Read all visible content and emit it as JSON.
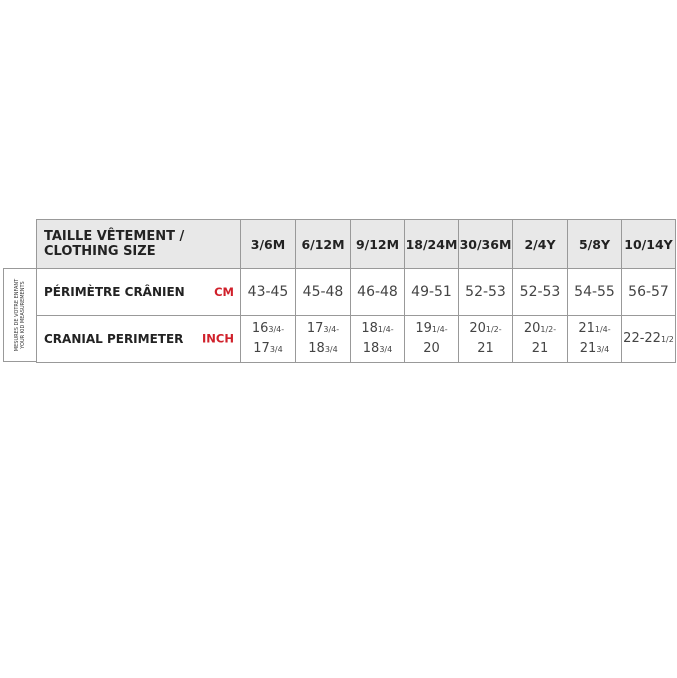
{
  "side_label": [
    "MESURES DE VOTRE ENFANT",
    "YOUR KID MEASUREMENTS"
  ],
  "header": {
    "label_line1": "TAILLE VÊTEMENT /",
    "label_line2": "CLOTHING SIZE",
    "sizes": [
      "3/6M",
      "6/12M",
      "9/12M",
      "18/24M",
      "30/36M",
      "2/4Y",
      "5/8Y",
      "10/14Y"
    ]
  },
  "rows": [
    {
      "label": "PÉRIMÈTRE CRÂNIEN",
      "unit": "CM",
      "values": [
        "43-45",
        "45-48",
        "46-48",
        "49-51",
        "52-53",
        "52-53",
        "54-55",
        "56-57"
      ]
    },
    {
      "label": "CRANIAL PERIMETER",
      "unit": "INCH",
      "values": [
        {
          "a": "16",
          "af": "3/4-",
          "b": "17",
          "bf": "3/4"
        },
        {
          "a": "17",
          "af": "3/4-",
          "b": "18",
          "bf": "3/4"
        },
        {
          "a": "18",
          "af": "1/4-",
          "b": "18",
          "bf": "3/4"
        },
        {
          "a": "19",
          "af": "1/4-",
          "b": "20",
          "bf": ""
        },
        {
          "a": "20",
          "af": "1/2-",
          "b": "21",
          "bf": ""
        },
        {
          "a": "20",
          "af": "1/2-",
          "b": "21",
          "bf": ""
        },
        {
          "a": "21",
          "af": "1/4-",
          "b": "21",
          "bf": "3/4"
        },
        {
          "a": "22-22",
          "af": "1/2",
          "b": "",
          "bf": ""
        }
      ]
    }
  ],
  "colors": {
    "unit": "#d0202a",
    "header_bg": "#e8e8e8"
  }
}
